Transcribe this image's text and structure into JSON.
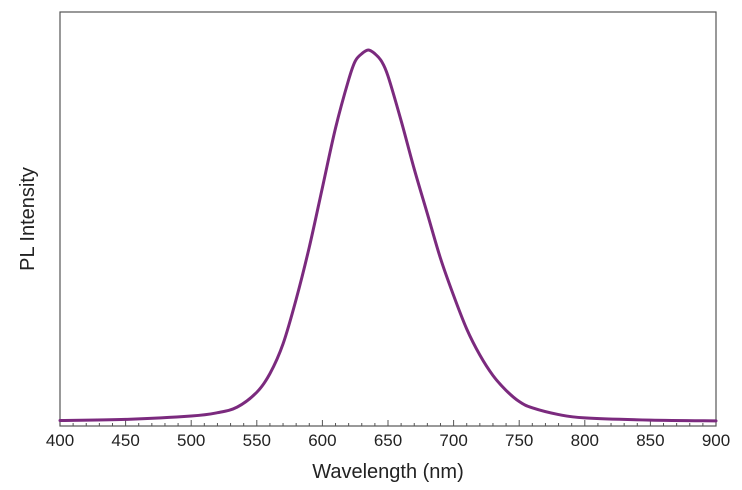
{
  "chart_data": {
    "type": "line",
    "title": "",
    "xlabel": "Wavelength (nm)",
    "ylabel": "PL Intensity",
    "xlim": [
      400,
      900
    ],
    "ylim": [
      0,
      1.0
    ],
    "x_ticks": [
      400,
      450,
      500,
      550,
      600,
      650,
      700,
      750,
      800,
      850,
      900
    ],
    "y_ticks_shown": false,
    "grid": false,
    "legend": "none",
    "series": [
      {
        "color": "#7b2a7e",
        "x": [
          400,
          450,
          500,
          520,
          535,
          550,
          560,
          570,
          580,
          590,
          600,
          610,
          620,
          625,
          630,
          635,
          640,
          645,
          650,
          660,
          670,
          680,
          690,
          700,
          710,
          720,
          730,
          740,
          750,
          760,
          780,
          800,
          850,
          900
        ],
        "y": [
          0.004,
          0.007,
          0.016,
          0.025,
          0.04,
          0.08,
          0.13,
          0.21,
          0.33,
          0.47,
          0.63,
          0.79,
          0.92,
          0.97,
          0.99,
          1.0,
          0.99,
          0.97,
          0.93,
          0.81,
          0.68,
          0.56,
          0.44,
          0.34,
          0.25,
          0.18,
          0.125,
          0.085,
          0.055,
          0.038,
          0.02,
          0.011,
          0.005,
          0.003
        ]
      }
    ]
  }
}
